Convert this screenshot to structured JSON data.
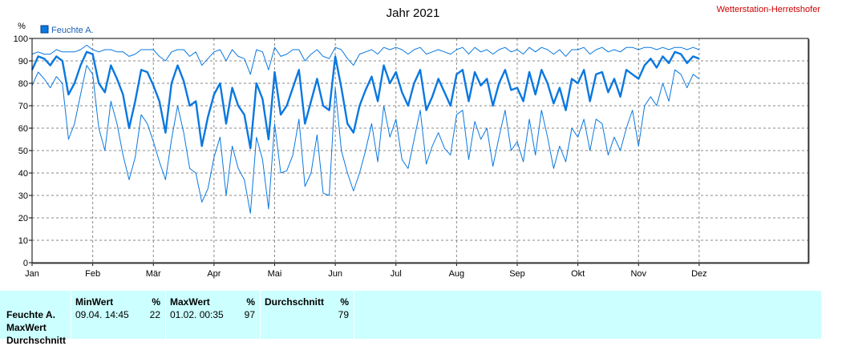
{
  "chart_data": {
    "type": "line",
    "title": "Jahr 2021",
    "station": "Wetterstation-Herretshofer",
    "ylabel": "%",
    "ylim": [
      0,
      100
    ],
    "yticks": [
      0,
      10,
      20,
      30,
      40,
      50,
      60,
      70,
      80,
      90,
      100
    ],
    "xlim": [
      0,
      12.8
    ],
    "xticks": [
      {
        "label": "Jan",
        "pos": 0
      },
      {
        "label": "Feb",
        "pos": 1
      },
      {
        "label": "Mär",
        "pos": 2
      },
      {
        "label": "Apr",
        "pos": 3
      },
      {
        "label": "Mai",
        "pos": 4
      },
      {
        "label": "Jun",
        "pos": 5
      },
      {
        "label": "Jul",
        "pos": 6
      },
      {
        "label": "Aug",
        "pos": 7
      },
      {
        "label": "Sep",
        "pos": 8
      },
      {
        "label": "Okt",
        "pos": 9
      },
      {
        "label": "Nov",
        "pos": 10
      },
      {
        "label": "Dez",
        "pos": 11
      }
    ],
    "grid": true,
    "legend_position": "top-left",
    "series_color": "#0a78e0",
    "series": [
      {
        "name": "Feuchte A.",
        "x": [
          0,
          0.1,
          0.2,
          0.3,
          0.4,
          0.5,
          0.6,
          0.7,
          0.8,
          0.9,
          1.0,
          1.1,
          1.2,
          1.3,
          1.4,
          1.5,
          1.6,
          1.7,
          1.8,
          1.9,
          2.0,
          2.1,
          2.2,
          2.3,
          2.4,
          2.5,
          2.6,
          2.7,
          2.8,
          2.9,
          3.0,
          3.1,
          3.2,
          3.3,
          3.4,
          3.5,
          3.6,
          3.7,
          3.8,
          3.9,
          4.0,
          4.1,
          4.2,
          4.3,
          4.4,
          4.5,
          4.6,
          4.7,
          4.8,
          4.9,
          5.0,
          5.1,
          5.2,
          5.3,
          5.4,
          5.5,
          5.6,
          5.7,
          5.8,
          5.9,
          6.0,
          6.1,
          6.2,
          6.3,
          6.4,
          6.5,
          6.6,
          6.7,
          6.8,
          6.9,
          7.0,
          7.1,
          7.2,
          7.3,
          7.4,
          7.5,
          7.6,
          7.7,
          7.8,
          7.9,
          8.0,
          8.1,
          8.2,
          8.3,
          8.4,
          8.5,
          8.6,
          8.7,
          8.8,
          8.9,
          9.0,
          9.1,
          9.2,
          9.3,
          9.4,
          9.5,
          9.6,
          9.7,
          9.8,
          9.9,
          10.0,
          10.1,
          10.2,
          10.3,
          10.4,
          10.5,
          10.6,
          10.7,
          10.8,
          10.9,
          11.0
        ],
        "mean": [
          86,
          92,
          91,
          88,
          92,
          90,
          75,
          80,
          88,
          94,
          93,
          80,
          76,
          88,
          82,
          75,
          60,
          72,
          86,
          85,
          79,
          72,
          58,
          80,
          88,
          81,
          70,
          72,
          52,
          65,
          75,
          80,
          62,
          78,
          70,
          66,
          51,
          80,
          73,
          55,
          85,
          66,
          70,
          78,
          86,
          62,
          72,
          82,
          70,
          68,
          92,
          78,
          62,
          58,
          70,
          77,
          83,
          72,
          88,
          80,
          85,
          76,
          70,
          80,
          86,
          68,
          74,
          82,
          76,
          70,
          84,
          86,
          72,
          85,
          79,
          82,
          70,
          80,
          86,
          77,
          78,
          72,
          85,
          75,
          86,
          80,
          71,
          78,
          68,
          82,
          80,
          86,
          72,
          84,
          85,
          76,
          82,
          74,
          86,
          84,
          82,
          88,
          91,
          87,
          92,
          89,
          94,
          93,
          89,
          92,
          91
        ],
        "max": [
          93,
          94,
          93,
          93,
          95,
          94,
          94,
          94,
          95,
          97,
          95,
          94,
          95,
          95,
          94,
          94,
          92,
          93,
          95,
          95,
          95,
          92,
          90,
          94,
          95,
          95,
          92,
          94,
          88,
          91,
          94,
          95,
          90,
          95,
          92,
          91,
          84,
          95,
          94,
          86,
          96,
          92,
          93,
          95,
          95,
          90,
          93,
          95,
          92,
          91,
          96,
          95,
          91,
          88,
          93,
          94,
          95,
          93,
          96,
          95,
          96,
          95,
          93,
          95,
          96,
          93,
          94,
          95,
          94,
          93,
          95,
          96,
          93,
          96,
          94,
          95,
          93,
          95,
          96,
          94,
          95,
          93,
          96,
          94,
          96,
          95,
          93,
          95,
          92,
          95,
          95,
          96,
          93,
          95,
          96,
          94,
          95,
          94,
          96,
          96,
          95,
          96,
          96,
          95,
          96,
          95,
          96,
          96,
          95,
          96,
          95
        ],
        "min": [
          79,
          85,
          82,
          78,
          83,
          80,
          55,
          62,
          75,
          88,
          84,
          60,
          50,
          72,
          62,
          48,
          37,
          47,
          66,
          62,
          54,
          45,
          37,
          55,
          70,
          58,
          42,
          40,
          27,
          33,
          47,
          56,
          30,
          52,
          42,
          37,
          22,
          56,
          46,
          24,
          62,
          40,
          41,
          48,
          64,
          34,
          40,
          57,
          31,
          30,
          78,
          50,
          40,
          32,
          40,
          50,
          62,
          45,
          70,
          56,
          64,
          46,
          42,
          55,
          68,
          44,
          52,
          58,
          51,
          48,
          66,
          68,
          46,
          63,
          55,
          60,
          43,
          56,
          68,
          50,
          54,
          45,
          64,
          48,
          68,
          56,
          42,
          52,
          45,
          60,
          56,
          64,
          50,
          64,
          62,
          48,
          56,
          50,
          60,
          68,
          52,
          70,
          74,
          70,
          80,
          72,
          86,
          84,
          78,
          84,
          82
        ]
      }
    ]
  },
  "stats": {
    "row_labels": [
      "Feuchte A.",
      "MaxWert",
      "Durchschnitt"
    ],
    "min_header": "MinWert",
    "min_unit": "%",
    "min_time": "09.04.  14:45",
    "min_value": "22",
    "max_header": "MaxWert",
    "max_unit": "%",
    "max_time": "01.02.  00:35",
    "max_value": "97",
    "avg_header": "Durchschnitt",
    "avg_unit": "%",
    "avg_value": "79"
  }
}
